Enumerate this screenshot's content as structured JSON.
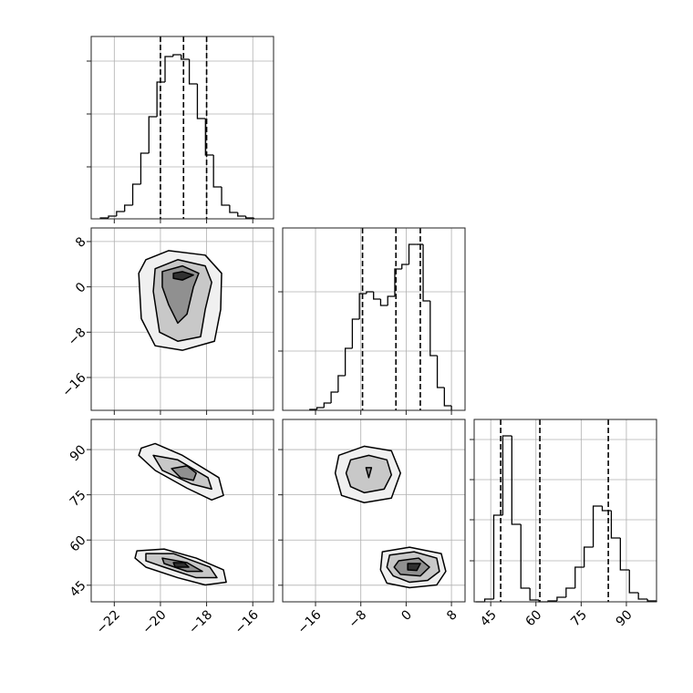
{
  "chart_data": {
    "type": "corner",
    "grid": true,
    "line_color": "#000000",
    "grid_color": "#b0b0b0",
    "level_colors": [
      "#f0f0f0",
      "#c8c8c8",
      "#909090",
      "#303030"
    ],
    "params": [
      {
        "lim": [
          -23,
          -15.1
        ],
        "ticks": [
          {
            "value": -22,
            "label": "−22"
          },
          {
            "value": -20,
            "label": "−20"
          },
          {
            "value": -18,
            "label": "−18"
          },
          {
            "value": -16,
            "label": "−16"
          }
        ],
        "quantiles": [
          -20,
          -19,
          -18
        ],
        "hist": {
          "bins": [
            -22.6,
            -22.25,
            -21.9,
            -21.55,
            -21.2,
            -20.85,
            -20.5,
            -20.15,
            -19.8,
            -19.45,
            -19.1,
            -18.75,
            -18.4,
            -18.05,
            -17.7,
            -17.35,
            -17.0,
            -16.65,
            -16.3,
            -15.95
          ],
          "counts": [
            1,
            3,
            8,
            15,
            38,
            72,
            112,
            150,
            178,
            180,
            175,
            148,
            110,
            70,
            35,
            15,
            7,
            3,
            1
          ],
          "ylim": [
            0,
            200
          ],
          "yticks": [
            57,
            115,
            173
          ]
        }
      },
      {
        "lim": [
          -21.8,
          10.4
        ],
        "ticks": [
          {
            "value": -16,
            "label": "−16"
          },
          {
            "value": -8,
            "label": "−8"
          },
          0,
          8
        ],
        "quantiles": [
          -7.7,
          -1.8,
          2.5
        ],
        "hist": {
          "bins": [
            -17,
            -15.75,
            -14.5,
            -13.25,
            -12,
            -10.75,
            -9.5,
            -8.25,
            -7,
            -5.75,
            -4.5,
            -3.25,
            -2,
            -0.75,
            0.5,
            1.75,
            3,
            4.25,
            5.5,
            6.75,
            8
          ],
          "counts": [
            1,
            3,
            8,
            20,
            38,
            68,
            100,
            128,
            130,
            122,
            115,
            125,
            155,
            160,
            182,
            182,
            120,
            60,
            25,
            5
          ],
          "ylim": [
            0,
            200
          ],
          "yticks": [
            65,
            130
          ]
        }
      },
      {
        "lim": [
          39.5,
          100
        ],
        "ticks": [
          45,
          60,
          75,
          90
        ],
        "quantiles": [
          48.3,
          61.3,
          84
        ],
        "hist": {
          "bins": [
            40,
            43,
            46,
            49,
            52,
            55,
            58,
            61,
            64,
            67,
            70,
            73,
            76,
            79,
            82,
            85,
            88,
            91,
            94,
            97,
            100
          ],
          "counts": [
            0,
            3,
            95,
            182,
            85,
            15,
            2,
            0,
            1,
            5,
            15,
            38,
            60,
            105,
            100,
            70,
            35,
            10,
            3,
            1
          ],
          "ylim": [
            0,
            200
          ],
          "yticks": [
            45,
            90,
            134,
            178
          ]
        }
      }
    ],
    "pairs": [
      {
        "x": 0,
        "y": 1,
        "blobs": [
          [
            [
              [
                -20.63,
                4.8
              ],
              [
                -19.64,
                6.4
              ],
              [
                -18.06,
                5.6
              ],
              [
                -17.35,
                2.4
              ],
              [
                -17.39,
                -4.0
              ],
              [
                -17.66,
                -9.6
              ],
              [
                -19.05,
                -11.2
              ],
              [
                -20.23,
                -10.4
              ],
              [
                -20.83,
                -5.6
              ],
              [
                -20.94,
                2.4
              ]
            ],
            [
              [
                -20.23,
                3.2
              ],
              [
                -19.25,
                4.8
              ],
              [
                -18.06,
                3.7
              ],
              [
                -17.78,
                0.8
              ],
              [
                -18.06,
                -4.0
              ],
              [
                -18.26,
                -8.8
              ],
              [
                -19.25,
                -9.6
              ],
              [
                -20.04,
                -8.0
              ],
              [
                -20.31,
                -0.8
              ]
            ],
            [
              [
                -19.92,
                2.7
              ],
              [
                -19.05,
                3.7
              ],
              [
                -18.34,
                2.4
              ],
              [
                -18.57,
                0.0
              ],
              [
                -18.85,
                -4.8
              ],
              [
                -19.25,
                -6.4
              ],
              [
                -19.64,
                -3.2
              ],
              [
                -19.92,
                0.0
              ]
            ],
            [
              [
                -19.44,
                2.4
              ],
              [
                -19.05,
                2.7
              ],
              [
                -18.57,
                2.1
              ],
              [
                -19.05,
                1.2
              ],
              [
                -19.44,
                1.5
              ]
            ]
          ]
        ]
      },
      {
        "x": 0,
        "y": 2,
        "blobs": [
          [
            [
              [
                -20.83,
                90.5
              ],
              [
                -20.23,
                92.0
              ],
              [
                -19.05,
                88.1
              ],
              [
                -17.47,
                80.7
              ],
              [
                -17.27,
                74.8
              ],
              [
                -17.78,
                73.3
              ],
              [
                -18.85,
                77.2
              ],
              [
                -20.23,
                83.1
              ],
              [
                -20.94,
                88.1
              ]
            ],
            [
              [
                -20.31,
                88.1
              ],
              [
                -19.25,
                86.6
              ],
              [
                -17.94,
                80.7
              ],
              [
                -17.78,
                76.9
              ],
              [
                -18.65,
                78.6
              ],
              [
                -19.92,
                83.1
              ]
            ],
            [
              [
                -19.52,
                83.7
              ],
              [
                -18.85,
                84.6
              ],
              [
                -18.45,
                82.2
              ],
              [
                -18.57,
                79.8
              ],
              [
                -19.13,
                80.7
              ]
            ]
          ],
          [
            [
              [
                -21.02,
                56.4
              ],
              [
                -19.84,
                57.0
              ],
              [
                -18.45,
                54.0
              ],
              [
                -17.27,
                50.1
              ],
              [
                -17.15,
                46.0
              ],
              [
                -18.06,
                45.1
              ],
              [
                -19.25,
                47.5
              ],
              [
                -20.63,
                51.0
              ],
              [
                -21.1,
                54.0
              ]
            ],
            [
              [
                -20.63,
                55.5
              ],
              [
                -19.44,
                55.5
              ],
              [
                -17.86,
                51.0
              ],
              [
                -17.55,
                47.5
              ],
              [
                -18.45,
                47.5
              ],
              [
                -19.84,
                51.0
              ],
              [
                -20.63,
                53.1
              ]
            ],
            [
              [
                -19.92,
                54.0
              ],
              [
                -18.85,
                52.5
              ],
              [
                -18.18,
                49.6
              ],
              [
                -18.85,
                49.6
              ],
              [
                -19.84,
                52.2
              ]
            ],
            [
              [
                -19.44,
                52.5
              ],
              [
                -18.97,
                52.5
              ],
              [
                -18.77,
                51.0
              ],
              [
                -19.36,
                51.0
              ]
            ]
          ]
        ]
      },
      {
        "x": 1,
        "y": 2,
        "blobs": [
          [
            [
              [
                -11.88,
                88.1
              ],
              [
                -7.4,
                91.1
              ],
              [
                -2.6,
                89.6
              ],
              [
                -1.0,
                82.2
              ],
              [
                -2.6,
                73.9
              ],
              [
                -7.4,
                72.4
              ],
              [
                -11.4,
                74.8
              ],
              [
                -12.52,
                82.2
              ]
            ],
            [
              [
                -9.8,
                86.6
              ],
              [
                -6.6,
                88.1
              ],
              [
                -3.4,
                86.6
              ],
              [
                -2.6,
                81.6
              ],
              [
                -3.88,
                76.9
              ],
              [
                -7.4,
                75.7
              ],
              [
                -9.8,
                77.7
              ],
              [
                -10.6,
                82.2
              ]
            ],
            [
              [
                -7.08,
                84.0
              ],
              [
                -6.12,
                84.0
              ],
              [
                -6.6,
                80.7
              ]
            ]
          ],
          [
            [
              [
                -4.2,
                56.1
              ],
              [
                0.6,
                57.6
              ],
              [
                6.2,
                55.5
              ],
              [
                7.0,
                49.6
              ],
              [
                5.4,
                45.1
              ],
              [
                0.6,
                44.2
              ],
              [
                -3.4,
                45.7
              ],
              [
                -4.52,
                50.1
              ]
            ],
            [
              [
                -2.92,
                55.0
              ],
              [
                1.4,
                56.1
              ],
              [
                5.4,
                54.0
              ],
              [
                5.88,
                49.6
              ],
              [
                3.8,
                46.6
              ],
              [
                0.6,
                46.0
              ],
              [
                -2.28,
                48.1
              ],
              [
                -3.4,
                51.0
              ]
            ],
            [
              [
                -1.32,
                53.1
              ],
              [
                2.2,
                54.0
              ],
              [
                4.12,
                51.0
              ],
              [
                2.52,
                48.1
              ],
              [
                -1.0,
                48.6
              ],
              [
                -2.12,
                51.0
              ]
            ],
            [
              [
                0.28,
                52.2
              ],
              [
                2.52,
                52.2
              ],
              [
                1.88,
                49.9
              ],
              [
                0.28,
                50.1
              ]
            ]
          ]
        ]
      }
    ]
  }
}
